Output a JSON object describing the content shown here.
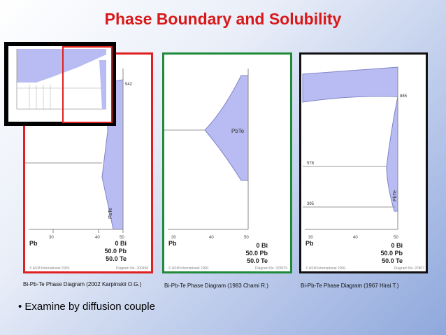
{
  "slide": {
    "title": "Phase Boundary and Solubility",
    "bullet": "• Examine by diffusion couple"
  },
  "colors": {
    "title": "#d81818",
    "panel1_border": "#e02020",
    "panel2_border": "#1e8a3a",
    "panel3_border": "#111111",
    "phase_fill": "#b9bcf2"
  },
  "panels": [
    {
      "caption": "Bi-Pb-Te Phase Diagram (2002 Karpinskii O.G.)",
      "temp_label": "942",
      "phase_label": "PbTe",
      "x_ticks": [
        "30",
        "40",
        "50"
      ],
      "left_label": "Pb",
      "right_labels": [
        "0 Bi",
        "50.0 Pb",
        "50.0 Te"
      ],
      "footer_left": "© ASM International 2009.",
      "footer_right": "Diagram No. 200498"
    },
    {
      "caption": "Bi-Pb-Te Phase Diagram (1983 Chami R.)",
      "phase_label": "PbTe",
      "x_ticks": [
        "30",
        "40",
        "50"
      ],
      "left_label": "Pb",
      "right_labels": [
        "0 Bi",
        "50.0 Pb",
        "50.0 Te"
      ],
      "footer_left": "© ASM International 2006.",
      "footer_right": "Diagram No. 978079"
    },
    {
      "caption": "Bi-Pb-Te Phase Diagram (1967 Hirai T.)",
      "temp_labels": [
        "885",
        "578",
        "395"
      ],
      "phase_label": "PbTe",
      "x_ticks": [
        "30",
        "40",
        "50"
      ],
      "left_label": "Pb",
      "right_labels": [
        "0 Bi",
        "50.0 Pb",
        "50.0 Te"
      ],
      "footer_left": "© ASM International 2006.",
      "footer_right": "Diagram No. 97807"
    }
  ]
}
